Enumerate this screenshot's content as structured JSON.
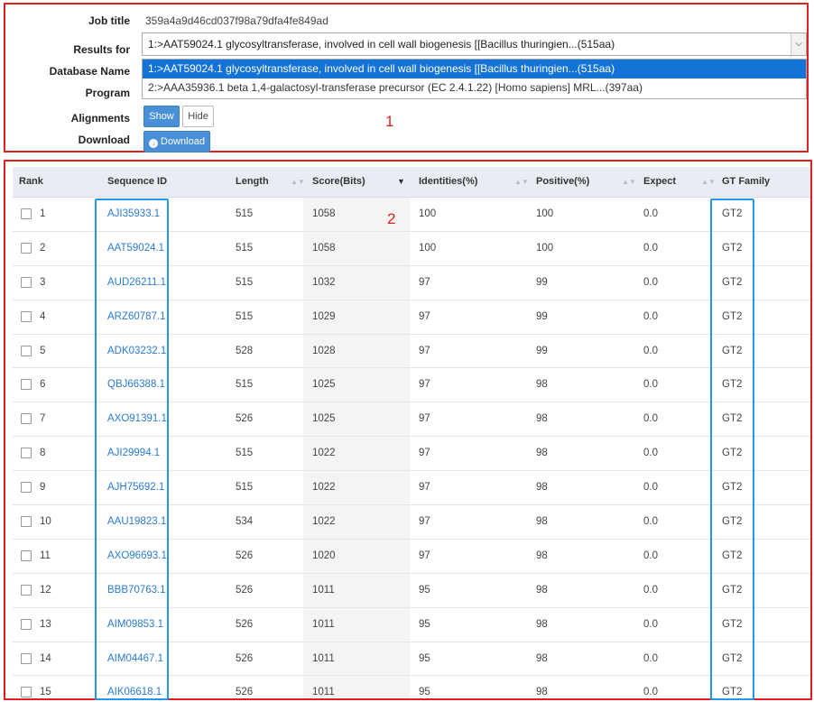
{
  "form": {
    "job_title_label": "Job title",
    "job_title_value": "359a4a9d46cd037f98a79dfa4fe849ad",
    "results_for_label": "Results for",
    "results_for_selected": "1:>AAT59024.1 glycosyltransferase, involved in cell wall biogenesis [[Bacillus thuringien...(515aa)",
    "dropdown_options": [
      "1:>AAT59024.1 glycosyltransferase, involved in cell wall biogenesis [[Bacillus thuringien...(515aa)",
      "2:>AAA35936.1 beta 1,4-galactosyl-transferase precursor (EC 2.4.1.22) [Homo sapiens] MRL...(397aa)"
    ],
    "database_name_label": "Database Name",
    "program_label": "Program",
    "alignments_label": "Alignments",
    "show_label": "Show",
    "hide_label": "Hide",
    "download_label": "Download",
    "download_button_label": "Download",
    "download_icon": "download-circle-icon"
  },
  "markers": {
    "section1": "1",
    "section2": "2"
  },
  "table": {
    "headers": {
      "rank": "Rank",
      "sequence_id": "Sequence ID",
      "length": "Length",
      "score": "Score(Bits)",
      "identities": "Identities(%)",
      "positive": "Positive(%)",
      "expect": "Expect",
      "gt_family": "GT Family"
    },
    "sorted_column": "score",
    "sort_direction": "descending",
    "rows": [
      {
        "rank": "1",
        "id": "AJI35933.1",
        "length": "515",
        "score": "1058",
        "identities": "100",
        "positive": "100",
        "expect": "0.0",
        "family": "GT2"
      },
      {
        "rank": "2",
        "id": "AAT59024.1",
        "length": "515",
        "score": "1058",
        "identities": "100",
        "positive": "100",
        "expect": "0.0",
        "family": "GT2"
      },
      {
        "rank": "3",
        "id": "AUD26211.1",
        "length": "515",
        "score": "1032",
        "identities": "97",
        "positive": "99",
        "expect": "0.0",
        "family": "GT2"
      },
      {
        "rank": "4",
        "id": "ARZ60787.1",
        "length": "515",
        "score": "1029",
        "identities": "97",
        "positive": "99",
        "expect": "0.0",
        "family": "GT2"
      },
      {
        "rank": "5",
        "id": "ADK03232.1",
        "length": "528",
        "score": "1028",
        "identities": "97",
        "positive": "99",
        "expect": "0.0",
        "family": "GT2"
      },
      {
        "rank": "6",
        "id": "QBJ66388.1",
        "length": "515",
        "score": "1025",
        "identities": "97",
        "positive": "98",
        "expect": "0.0",
        "family": "GT2"
      },
      {
        "rank": "7",
        "id": "AXO91391.1",
        "length": "526",
        "score": "1025",
        "identities": "97",
        "positive": "98",
        "expect": "0.0",
        "family": "GT2"
      },
      {
        "rank": "8",
        "id": "AJI29994.1",
        "length": "515",
        "score": "1022",
        "identities": "97",
        "positive": "98",
        "expect": "0.0",
        "family": "GT2"
      },
      {
        "rank": "9",
        "id": "AJH75692.1",
        "length": "515",
        "score": "1022",
        "identities": "97",
        "positive": "98",
        "expect": "0.0",
        "family": "GT2"
      },
      {
        "rank": "10",
        "id": "AAU19823.1",
        "length": "534",
        "score": "1022",
        "identities": "97",
        "positive": "98",
        "expect": "0.0",
        "family": "GT2"
      },
      {
        "rank": "11",
        "id": "AXO96693.1",
        "length": "526",
        "score": "1020",
        "identities": "97",
        "positive": "98",
        "expect": "0.0",
        "family": "GT2"
      },
      {
        "rank": "12",
        "id": "BBB70763.1",
        "length": "526",
        "score": "1011",
        "identities": "95",
        "positive": "98",
        "expect": "0.0",
        "family": "GT2"
      },
      {
        "rank": "13",
        "id": "AIM09853.1",
        "length": "526",
        "score": "1011",
        "identities": "95",
        "positive": "98",
        "expect": "0.0",
        "family": "GT2"
      },
      {
        "rank": "14",
        "id": "AIM04467.1",
        "length": "526",
        "score": "1011",
        "identities": "95",
        "positive": "98",
        "expect": "0.0",
        "family": "GT2"
      },
      {
        "rank": "15",
        "id": "AIK06618.1",
        "length": "526",
        "score": "1011",
        "identities": "95",
        "positive": "98",
        "expect": "0.0",
        "family": "GT2"
      }
    ]
  },
  "colors": {
    "annotation_red": "#e02020",
    "annotation_blue": "#2196f3",
    "link": "#2a7bd2",
    "button_primary": "#4a90d9",
    "dropdown_selected": "#1473d6"
  }
}
